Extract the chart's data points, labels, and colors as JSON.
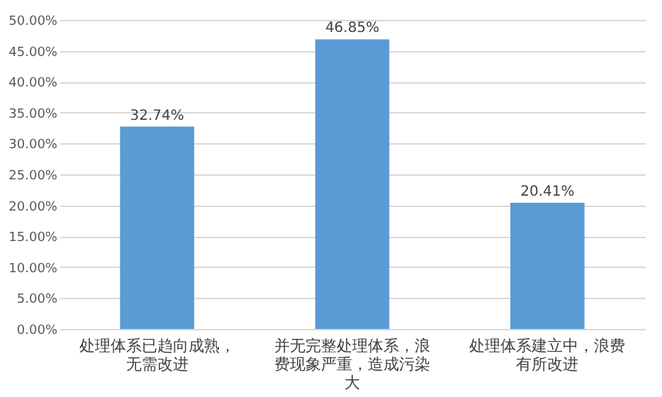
{
  "chart_data": {
    "type": "bar",
    "categories": [
      "处理体系已趋向成熟，无需改进",
      "并无完整处理体系，浪费现象严重，造成污染大",
      "处理体系建立中，浪费有所改进"
    ],
    "values": [
      32.74,
      46.85,
      20.41
    ],
    "value_labels": [
      "32.74%",
      "46.85%",
      "20.41%"
    ],
    "color": "#5b9bd5",
    "ylim": [
      0,
      50
    ],
    "yticks": [
      {
        "value": 0,
        "label": "0.00%"
      },
      {
        "value": 5,
        "label": "5.00%"
      },
      {
        "value": 10,
        "label": "10.00%"
      },
      {
        "value": 15,
        "label": "15.00%"
      },
      {
        "value": 20,
        "label": "20.00%"
      },
      {
        "value": 25,
        "label": "25.00%"
      },
      {
        "value": 30,
        "label": "30.00%"
      },
      {
        "value": 35,
        "label": "35.00%"
      },
      {
        "value": 40,
        "label": "40.00%"
      },
      {
        "value": 45,
        "label": "45.00%"
      },
      {
        "value": 50,
        "label": "50.00%"
      }
    ],
    "grid": "y"
  }
}
